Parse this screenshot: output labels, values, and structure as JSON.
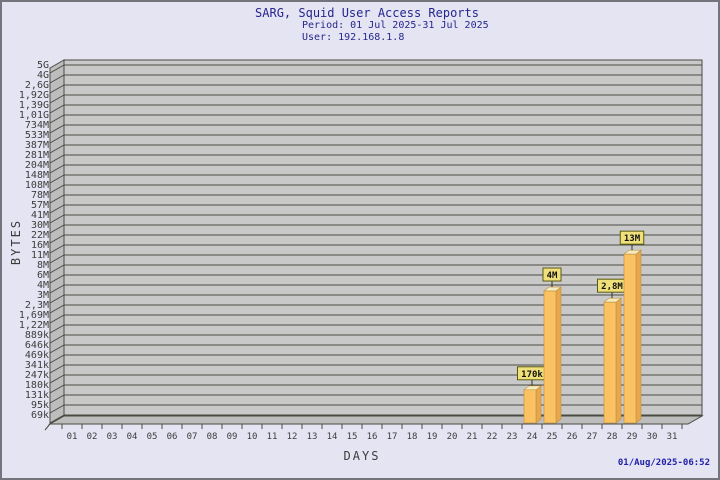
{
  "header": {
    "title": "SARG, Squid User Access Reports",
    "period": "Period: 01 Jul 2025-31 Jul 2025",
    "user": "User: 192.168.1.8"
  },
  "footer": {
    "timestamp": "01/Aug/2025-06:52"
  },
  "chart_data": {
    "type": "bar",
    "title": "SARG, Squid User Access Reports",
    "subtitle_lines": [
      "Period: 01 Jul 2025-31 Jul 2025",
      "User: 192.168.1.8"
    ],
    "xlabel": "DAYS",
    "ylabel": "BYTES",
    "y_scale": "log",
    "grid": "horizontal",
    "x_categories": [
      "01",
      "02",
      "03",
      "04",
      "05",
      "06",
      "07",
      "08",
      "09",
      "10",
      "11",
      "12",
      "13",
      "14",
      "15",
      "16",
      "17",
      "18",
      "19",
      "20",
      "21",
      "22",
      "23",
      "24",
      "25",
      "26",
      "27",
      "28",
      "29",
      "30",
      "31"
    ],
    "y_tick_labels_top_to_bottom": [
      "5G",
      "4G",
      "2,6G",
      "1,92G",
      "1,39G",
      "1,01G",
      "734M",
      "533M",
      "387M",
      "281M",
      "204M",
      "148M",
      "108M",
      "78M",
      "57M",
      "41M",
      "30M",
      "22M",
      "16M",
      "11M",
      "8M",
      "6M",
      "4M",
      "3M",
      "2,3M",
      "1,69M",
      "1,22M",
      "889k",
      "646k",
      "469k",
      "341k",
      "247k",
      "180k",
      "131k",
      "95k",
      "69k"
    ],
    "y_axis_top_value": 5000000000,
    "y_axis_bottom_value": 69000,
    "bars": [
      {
        "day": "24",
        "label": "170k",
        "bytes": 170000
      },
      {
        "day": "25",
        "label": "4M",
        "bytes": 4000000
      },
      {
        "day": "28",
        "label": "2,8M",
        "bytes": 2800000
      },
      {
        "day": "29",
        "label": "13M",
        "bytes": 13000000
      }
    ],
    "colors": {
      "background": "#E4E4F2",
      "plot_bg": "#C9C9C9",
      "wall": "#BDBDBD",
      "grid_line": "#4A4A42",
      "bar_front": "#FBC264",
      "bar_side": "#E8A74C",
      "bar_top": "#F3ECC1",
      "bar_edge": "#BF8F3C",
      "label_box_bg": "#F0E07A",
      "label_box_border": "#5A5A14",
      "title_color": "#26268F",
      "timestamp_color": "#2121AA",
      "axis_text": "#3C3C3C"
    }
  }
}
